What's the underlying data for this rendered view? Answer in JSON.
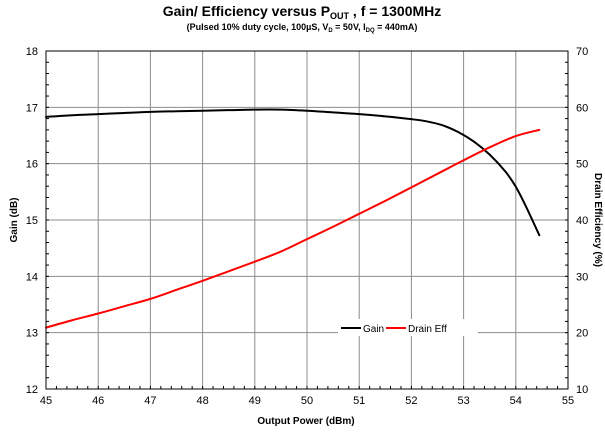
{
  "chart_data": {
    "type": "line",
    "title_main": "Gain/ Efficiency versus P",
    "title_sub_script": "OUT",
    "title_tail": " , f = 1300MHz",
    "subtitle": {
      "part1": "(Pulsed 10% duty cycle, 100µS, V",
      "sub1": "D",
      "part2": " = 50V, I",
      "sub2": "DQ",
      "part3": " = 440mA)"
    },
    "xlabel": "Output Power (dBm)",
    "ylabel_left": "Gain (dB)",
    "ylabel_right": "Drain Efficiency (%)",
    "xlim": [
      45,
      55
    ],
    "ylim_left": [
      12,
      18
    ],
    "ylim_right": [
      10,
      70
    ],
    "x_ticks": [
      "45",
      "46",
      "47",
      "48",
      "49",
      "50",
      "51",
      "52",
      "53",
      "54",
      "55"
    ],
    "y_left_ticks": [
      "12",
      "13",
      "14",
      "15",
      "16",
      "17",
      "18"
    ],
    "y_right_ticks": [
      "10",
      "20",
      "30",
      "40",
      "50",
      "60",
      "70"
    ],
    "grid": true,
    "legend_position": "lower-right",
    "series": [
      {
        "name": "Gain",
        "axis": "left",
        "color": "#000000",
        "x": [
          45.0,
          45.5,
          46.0,
          46.5,
          47.0,
          47.5,
          48.0,
          48.5,
          49.0,
          49.5,
          50.0,
          50.5,
          51.0,
          51.5,
          52.0,
          52.3,
          52.6,
          52.9,
          53.2,
          53.5,
          53.8,
          54.0,
          54.2,
          54.45
        ],
        "y": [
          16.83,
          16.86,
          16.88,
          16.9,
          16.92,
          16.93,
          16.94,
          16.95,
          16.96,
          16.96,
          16.94,
          16.91,
          16.88,
          16.84,
          16.79,
          16.75,
          16.68,
          16.56,
          16.39,
          16.16,
          15.86,
          15.59,
          15.23,
          14.73
        ]
      },
      {
        "name": "Drain Eff",
        "axis": "right",
        "color": "#ff0000",
        "x": [
          45.0,
          45.5,
          46.0,
          46.5,
          47.0,
          47.5,
          48.0,
          48.5,
          49.0,
          49.5,
          50.0,
          50.5,
          51.0,
          51.5,
          52.0,
          52.5,
          53.0,
          53.5,
          54.0,
          54.45
        ],
        "y": [
          20.9,
          22.2,
          23.4,
          24.7,
          26.0,
          27.6,
          29.2,
          30.9,
          32.6,
          34.4,
          36.6,
          38.8,
          41.1,
          43.4,
          45.8,
          48.2,
          50.6,
          52.9,
          54.9,
          56.0
        ]
      }
    ]
  }
}
